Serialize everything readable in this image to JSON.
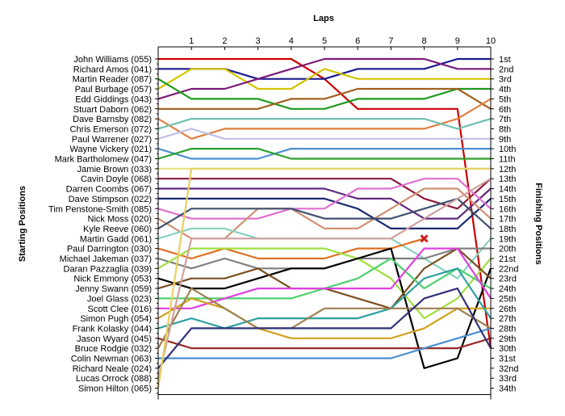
{
  "chart_data": {
    "type": "line",
    "title": "",
    "xlabel": "Laps",
    "ylabel_left": "Starting Positions",
    "ylabel_right": "Finishing Positions",
    "x_ticks": [
      1,
      2,
      3,
      4,
      5,
      6,
      7,
      8,
      9,
      10
    ],
    "y_range": [
      1,
      34
    ],
    "drivers": [
      "John Williams (055)",
      "Richard Amos (041)",
      "Martin Reader (087)",
      "Paul Burbage (057)",
      "Edd Giddings (043)",
      "Stuart Daborn (062)",
      "Dave Barnsby (082)",
      "Chris Emerson (072)",
      "Paul Warrener (027)",
      "Wayne Vickery (021)",
      "Mark Bartholomew (047)",
      "Jamie Brown (033)",
      "Cavin Doyle (068)",
      "Darren Coombs (067)",
      "Dave Stimpson (022)",
      "Tim Penstone-Smith (085)",
      "Nick Moss (020)",
      "Kyle Reeve (060)",
      "Martin Gadd (061)",
      "Paul Darrington (030)",
      "Michael Jakeman (037)",
      "Daran Pazzaglia (039)",
      "Nick Emmony (053)",
      "Jenny Swann (059)",
      "Joel Glass (023)",
      "Scott Clee (016)",
      "Simon Pugh (054)",
      "Frank Kolasky (044)",
      "Jason Wyard (045)",
      "Bruce Rodgie (032)",
      "Colin Newman (063)",
      "Richard Neale (024)",
      "Lucas Orrock (088)",
      "Simon Hilton (065)"
    ],
    "finishing_labels": [
      "1st",
      "2nd",
      "3rd",
      "4th",
      "5th",
      "6th",
      "7th",
      "8th",
      "9th",
      "10th",
      "11th",
      "12th",
      "13th",
      "14th",
      "15th",
      "16th",
      "17th",
      "18th",
      "19th",
      "20th",
      "21st",
      "22nd",
      "23rd",
      "24th",
      "25th",
      "26th",
      "27th",
      "28th",
      "29th",
      "30th",
      "31st",
      "32nd",
      "33rd",
      "34th"
    ],
    "grid": false,
    "series": [
      {
        "color": "#cc0000",
        "positions": [
          1,
          1,
          1,
          1,
          1,
          3,
          6,
          6,
          6,
          6,
          30
        ]
      },
      {
        "color": "#1a1a8c",
        "positions": [
          2,
          2,
          2,
          3,
          3,
          3,
          2,
          2,
          2,
          1,
          1
        ]
      },
      {
        "color": "#d4c400",
        "positions": [
          4,
          2,
          2,
          4,
          4,
          2,
          3,
          3,
          3,
          3,
          3
        ]
      },
      {
        "color": "#7a1a7a",
        "positions": [
          5,
          4,
          4,
          3,
          2,
          1,
          1,
          1,
          1,
          2,
          2
        ]
      },
      {
        "color": "#1e9a1e",
        "positions": [
          3,
          5,
          5,
          5,
          6,
          6,
          5,
          5,
          5,
          4,
          4
        ]
      },
      {
        "color": "#a06020",
        "positions": [
          6,
          6,
          6,
          6,
          5,
          5,
          4,
          4,
          4,
          4,
          6
        ]
      },
      {
        "color": "#e08040",
        "positions": [
          7,
          9,
          8,
          8,
          8,
          8,
          8,
          8,
          8,
          7,
          5
        ]
      },
      {
        "color": "#70c0b0",
        "positions": [
          8,
          7,
          7,
          7,
          7,
          7,
          7,
          7,
          7,
          8,
          7
        ]
      },
      {
        "color": "#c0c0e8",
        "positions": [
          9,
          8,
          9,
          9,
          9,
          9,
          9,
          9,
          9,
          9,
          9
        ]
      },
      {
        "color": "#4a90d0",
        "positions": [
          10,
          11,
          11,
          11,
          10,
          10,
          10,
          10,
          10,
          10,
          10
        ]
      },
      {
        "color": "#2aa02a",
        "positions": [
          11,
          10,
          10,
          10,
          11,
          11,
          11,
          11,
          11,
          11,
          11
        ]
      },
      {
        "color": "#e8e080",
        "positions": [
          12,
          12,
          12,
          12,
          12,
          12,
          12,
          12,
          12,
          12,
          12
        ]
      },
      {
        "color": "#8b1a3a",
        "positions": [
          13,
          13,
          13,
          13,
          13,
          13,
          13,
          13,
          15,
          16,
          13
        ]
      },
      {
        "color": "#602a80",
        "positions": [
          14,
          14,
          14,
          14,
          14,
          14,
          15,
          15,
          17,
          17,
          14
        ]
      },
      {
        "color": "#1a2a70",
        "positions": [
          15,
          15,
          15,
          15,
          15,
          15,
          16,
          18,
          18,
          18,
          15
        ]
      },
      {
        "color": "#e070d0",
        "positions": [
          16,
          17,
          17,
          17,
          16,
          16,
          14,
          14,
          13,
          13,
          16
        ]
      },
      {
        "color": "#d09070",
        "positions": [
          17,
          19,
          19,
          16,
          16,
          18,
          18,
          16,
          14,
          14,
          17
        ]
      },
      {
        "color": "#405070",
        "positions": [
          18,
          16,
          16,
          16,
          16,
          17,
          17,
          17,
          16,
          15,
          18
        ]
      },
      {
        "color": "#8ad0c0",
        "positions": [
          19,
          18,
          18,
          19,
          19,
          19,
          19,
          19,
          21,
          23,
          19
        ]
      },
      {
        "color": "#e07020",
        "positions": [
          20,
          21,
          20,
          21,
          21,
          21,
          20,
          20,
          19
        ]
      },
      {
        "color": "#808080",
        "positions": [
          21,
          22,
          21,
          22,
          22,
          22,
          21,
          21,
          21,
          20,
          20
        ]
      },
      {
        "color": "#a0e040",
        "positions": [
          22,
          20,
          20,
          20,
          20,
          20,
          21,
          23,
          27,
          25,
          21
        ]
      },
      {
        "color": "#000000",
        "positions": [
          23,
          24,
          24,
          23,
          22,
          22,
          21,
          20,
          32,
          31,
          22
        ]
      },
      {
        "color": "#7a5020",
        "positions": [
          24,
          23,
          23,
          22,
          24,
          24,
          25,
          26,
          22,
          20,
          23
        ]
      },
      {
        "color": "#50d070",
        "positions": [
          25,
          25,
          25,
          25,
          25,
          24,
          23,
          21,
          24,
          22,
          24
        ]
      },
      {
        "color": "#e040e0",
        "positions": [
          26,
          26,
          25,
          24,
          24,
          24,
          24,
          24,
          20,
          20,
          25
        ]
      },
      {
        "color": "#d0a020",
        "positions": [
          27,
          25,
          26,
          28,
          29,
          29,
          29,
          29,
          28,
          26,
          26
        ]
      },
      {
        "color": "#30a0a0",
        "positions": [
          28,
          27,
          28,
          27,
          27,
          27,
          27,
          26,
          23,
          22,
          27
        ]
      },
      {
        "color": "#9a2a2a",
        "positions": [
          29,
          30,
          30,
          30,
          30,
          30,
          30,
          30,
          30,
          30,
          29
        ]
      },
      {
        "color": "#a08050",
        "positions": [
          30,
          24,
          26,
          28,
          28,
          26,
          26,
          26,
          26,
          26,
          28
        ]
      },
      {
        "color": "#4a90d0",
        "positions": [
          31,
          31,
          31,
          31,
          31,
          31,
          31,
          31,
          30,
          29,
          28
        ]
      },
      {
        "color": "#30307a",
        "positions": [
          32,
          28,
          28,
          28,
          28,
          28,
          28,
          28,
          25,
          24,
          30
        ]
      },
      {
        "color": "#d0a0a0",
        "positions": [
          33,
          19,
          19,
          19,
          19,
          19,
          19,
          19,
          17,
          15,
          13
        ]
      },
      {
        "color": "#e8d060",
        "positions": [
          34,
          12,
          12,
          12,
          12,
          12,
          12,
          12,
          12,
          12,
          12
        ]
      }
    ],
    "retired_marker": {
      "lap": 8,
      "position": 19,
      "color": "#cc2020"
    }
  }
}
